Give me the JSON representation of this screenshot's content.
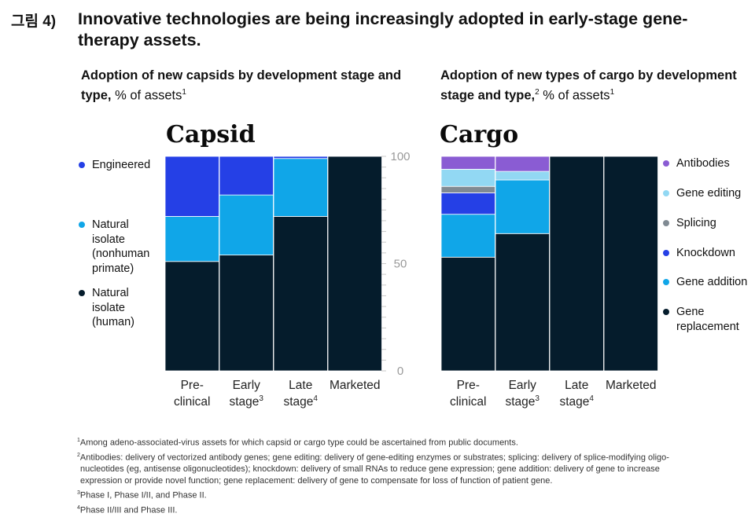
{
  "header": {
    "prefix": "그림 4)",
    "title": "Innovative technologies are being increasingly adopted in early-stage gene-therapy assets."
  },
  "left_subtitle": {
    "bold": "Adoption of new capsids by development stage and type,",
    "normal": " % of assets",
    "sup": "1"
  },
  "right_subtitle": {
    "bold": "Adoption of new types of cargo by development stage and type,",
    "bold_sup": "2",
    "normal": " % of assets",
    "sup": "1"
  },
  "colors": {
    "Engineered": "#2540e6",
    "Natural isolate (nonhuman primate)": "#10a6e8",
    "Natural isolate (human)": "#051c2c",
    "Antibodies": "#8a5cd3",
    "Gene editing": "#92d8f3",
    "Splicing": "#808a93",
    "Knockdown": "#2540e6",
    "Gene addition": "#10a6e8",
    "Gene replacement": "#051c2c"
  },
  "chart_data": [
    {
      "type": "bar",
      "stacked": true,
      "title": "Capsid",
      "categories": [
        {
          "line1": "Pre-",
          "line2": "clinical",
          "sup": ""
        },
        {
          "line1": "Early",
          "line2": "stage",
          "sup": "3"
        },
        {
          "line1": "Late",
          "line2": "stage",
          "sup": "4"
        },
        {
          "line1": "Marketed",
          "line2": "",
          "sup": ""
        }
      ],
      "ylim": [
        0,
        100
      ],
      "yticks": [
        0,
        50,
        100
      ],
      "series": [
        {
          "name": "Natural isolate (human)",
          "legend_lines": [
            "Natural",
            "isolate",
            "(human)"
          ],
          "values": [
            51,
            54,
            72,
            100
          ]
        },
        {
          "name": "Natural isolate (nonhuman primate)",
          "legend_lines": [
            "Natural",
            "isolate",
            "(nonhuman",
            "primate)"
          ],
          "values": [
            21,
            28,
            27,
            0
          ]
        },
        {
          "name": "Engineered",
          "legend_lines": [
            "Engineered"
          ],
          "values": [
            28,
            18,
            1,
            0
          ]
        }
      ],
      "legend_placement": "left"
    },
    {
      "type": "bar",
      "stacked": true,
      "title": "Cargo",
      "categories": [
        {
          "line1": "Pre-",
          "line2": "clinical",
          "sup": ""
        },
        {
          "line1": "Early",
          "line2": "stage",
          "sup": "3"
        },
        {
          "line1": "Late",
          "line2": "stage",
          "sup": "4"
        },
        {
          "line1": "Marketed",
          "line2": "",
          "sup": ""
        }
      ],
      "ylim": [
        0,
        100
      ],
      "series": [
        {
          "name": "Gene replacement",
          "legend_lines": [
            "Gene",
            "replacement"
          ],
          "values": [
            53,
            64,
            100,
            100
          ]
        },
        {
          "name": "Gene addition",
          "legend_lines": [
            "Gene addition"
          ],
          "values": [
            20,
            25,
            0,
            0
          ]
        },
        {
          "name": "Knockdown",
          "legend_lines": [
            "Knockdown"
          ],
          "values": [
            10,
            0,
            0,
            0
          ]
        },
        {
          "name": "Splicing",
          "legend_lines": [
            "Splicing"
          ],
          "values": [
            3,
            0,
            0,
            0
          ]
        },
        {
          "name": "Gene editing",
          "legend_lines": [
            "Gene editing"
          ],
          "values": [
            8,
            4,
            0,
            0
          ]
        },
        {
          "name": "Antibodies",
          "legend_lines": [
            "Antibodies"
          ],
          "values": [
            6,
            7,
            0,
            0
          ]
        }
      ],
      "legend_placement": "right"
    }
  ],
  "footnotes": [
    {
      "sup": "1",
      "text": "Among adeno-associated-virus assets for which capsid or cargo type could be ascertained from public documents."
    },
    {
      "sup": "2",
      "text": "Antibodies: delivery of vectorized antibody genes; gene editing: delivery of gene-editing enzymes or substrates; splicing: delivery of splice-modifying oligo-"
    },
    {
      "sup": "",
      "text": "nucleotides (eg, antisense oligonucleotides); knockdown: delivery of small RNAs to reduce gene expression; gene addition: delivery of gene to increase"
    },
    {
      "sup": "",
      "text": "expression or provide novel function; gene replacement: delivery of gene to compensate for loss of function of patient gene."
    },
    {
      "sup": "3",
      "text": "Phase I, Phase I/II, and Phase II."
    },
    {
      "sup": "4",
      "text": "Phase II/III and Phase III."
    }
  ]
}
